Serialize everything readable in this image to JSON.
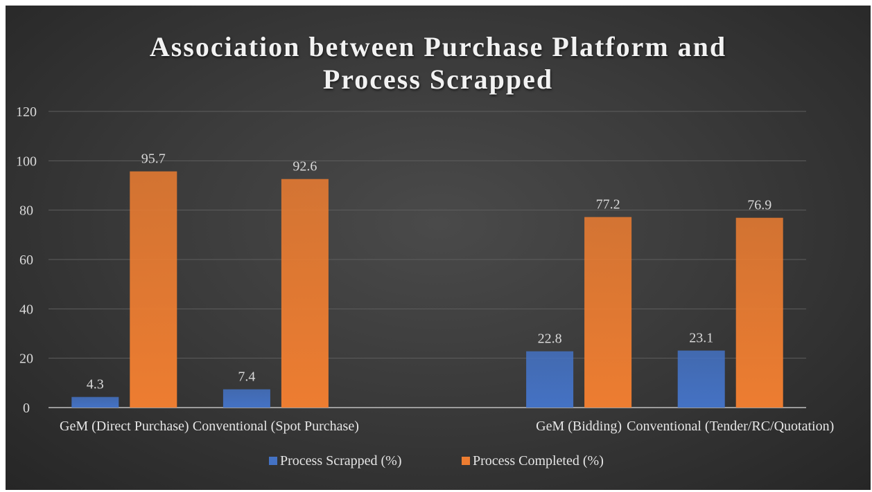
{
  "chart_data": {
    "type": "bar",
    "title_lines": [
      "Association between Purchase Platform and",
      "Process Scrapped"
    ],
    "categories": [
      "GeM (Direct Purchase)",
      "Conventional (Spot Purchase)",
      "",
      "GeM (Bidding)",
      "Conventional (Tender/RC/Quotation)"
    ],
    "series": [
      {
        "name": "Process Scrapped (%)",
        "color": "#4472c4",
        "values": [
          4.3,
          7.4,
          null,
          22.8,
          23.1
        ]
      },
      {
        "name": "Process Completed (%)",
        "color": "#ed7d31",
        "values": [
          95.7,
          92.6,
          null,
          77.2,
          76.9
        ]
      }
    ],
    "xlabel": "",
    "ylabel": "",
    "ylim": [
      0,
      120
    ],
    "yticks": [
      0,
      20,
      40,
      60,
      80,
      100,
      120
    ],
    "grid": true,
    "legend_position": "bottom",
    "data_labels": true,
    "background": "dark-gradient"
  }
}
